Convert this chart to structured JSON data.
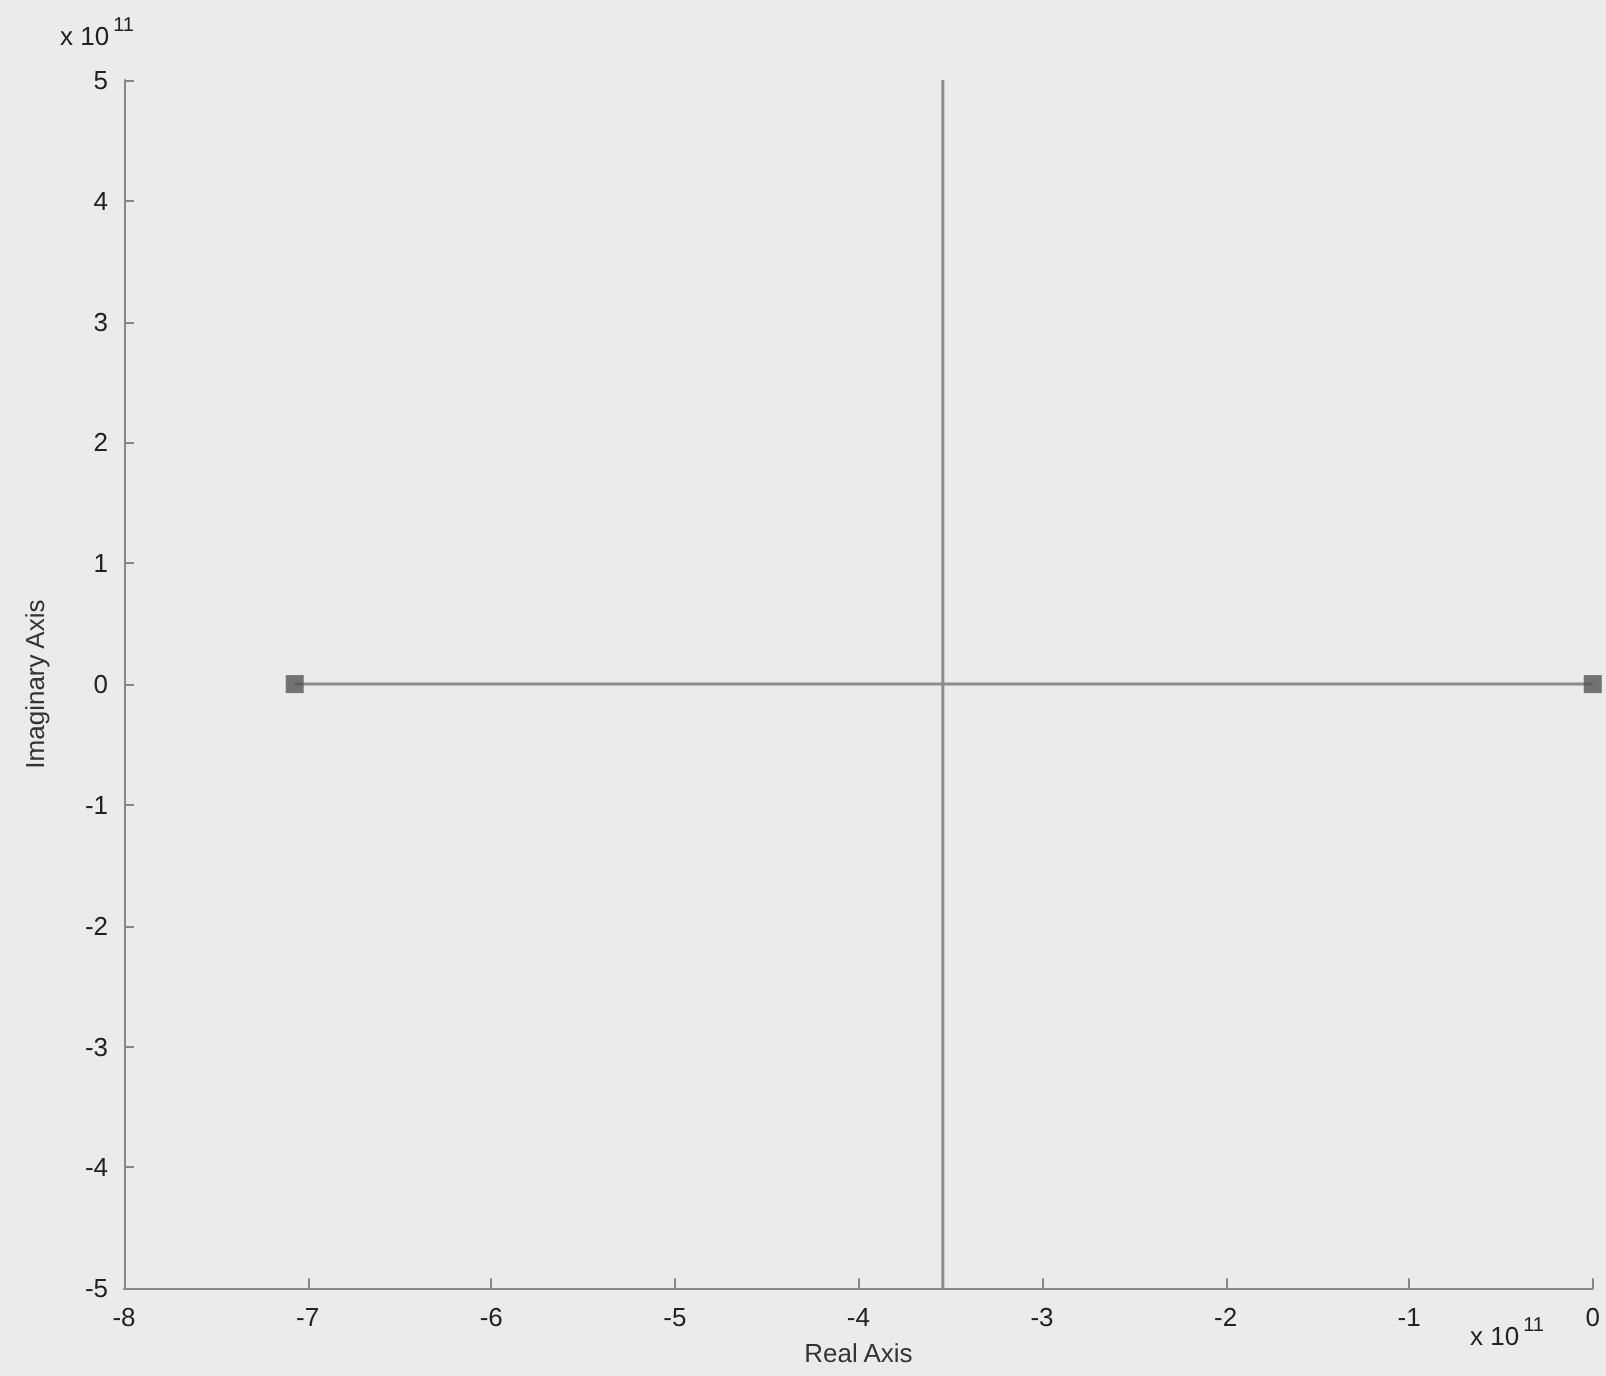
{
  "chart_data": {
    "type": "line",
    "xlabel": "Real Axis",
    "ylabel": "Imaginary Axis",
    "annotations": [
      "x 10$^{11}$",
      "x 10$^{11}$"
    ],
    "xlim": [
      -8,
      0
    ],
    "xticks": [
      -8,
      -7,
      -6,
      -5,
      -4,
      -3,
      -2,
      -1,
      0
    ],
    "ylim": [
      -5,
      5
    ],
    "yticks": [
      -5,
      -4,
      -3,
      -2,
      -1,
      0,
      1,
      2,
      3,
      4,
      5
    ],
    "grid": false,
    "series": [
      {
        "color": "#8c8c8c",
        "x": [
          -7.07,
          0
        ],
        "values": [
          0,
          0
        ],
        "marker": "none"
      },
      {
        "color": "#8c8c8c",
        "x": [
          -3.54,
          -3.54,
          -3.54
        ],
        "values": [
          5,
          0,
          -5
        ],
        "marker": "none"
      },
      {
        "type": "scatter",
        "color": "#555555",
        "x": [
          -7.07,
          0
        ],
        "values": [
          0,
          0
        ],
        "marker": "square"
      }
    ]
  }
}
